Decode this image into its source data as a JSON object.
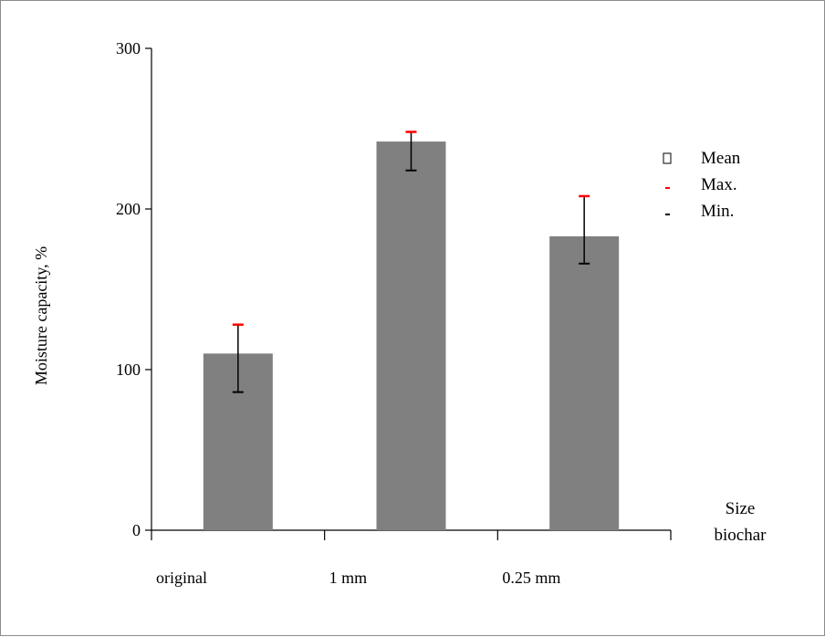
{
  "chart_data": {
    "type": "bar",
    "categories": [
      "original",
      "1 mm",
      "0.25 mm"
    ],
    "values": [
      110,
      242,
      183
    ],
    "max": [
      128,
      248,
      208
    ],
    "min": [
      86,
      224,
      166
    ],
    "ylabel": "Moisture capacity, %",
    "xlabel_lines": [
      "Size",
      "biochar"
    ],
    "ylim": [
      0,
      300
    ],
    "yticks": [
      "0",
      "100",
      "200",
      "300"
    ],
    "grid": false,
    "legend": {
      "position": "right",
      "entries": [
        {
          "label": "Mean",
          "marker": "square"
        },
        {
          "label": "Max.",
          "marker": "dash-red"
        },
        {
          "label": "Min.",
          "marker": "dash-black"
        }
      ]
    },
    "colors": {
      "bar": "#808080",
      "max_cap": "#ff0000",
      "error_line": "#000000",
      "axis": "#000000"
    }
  }
}
